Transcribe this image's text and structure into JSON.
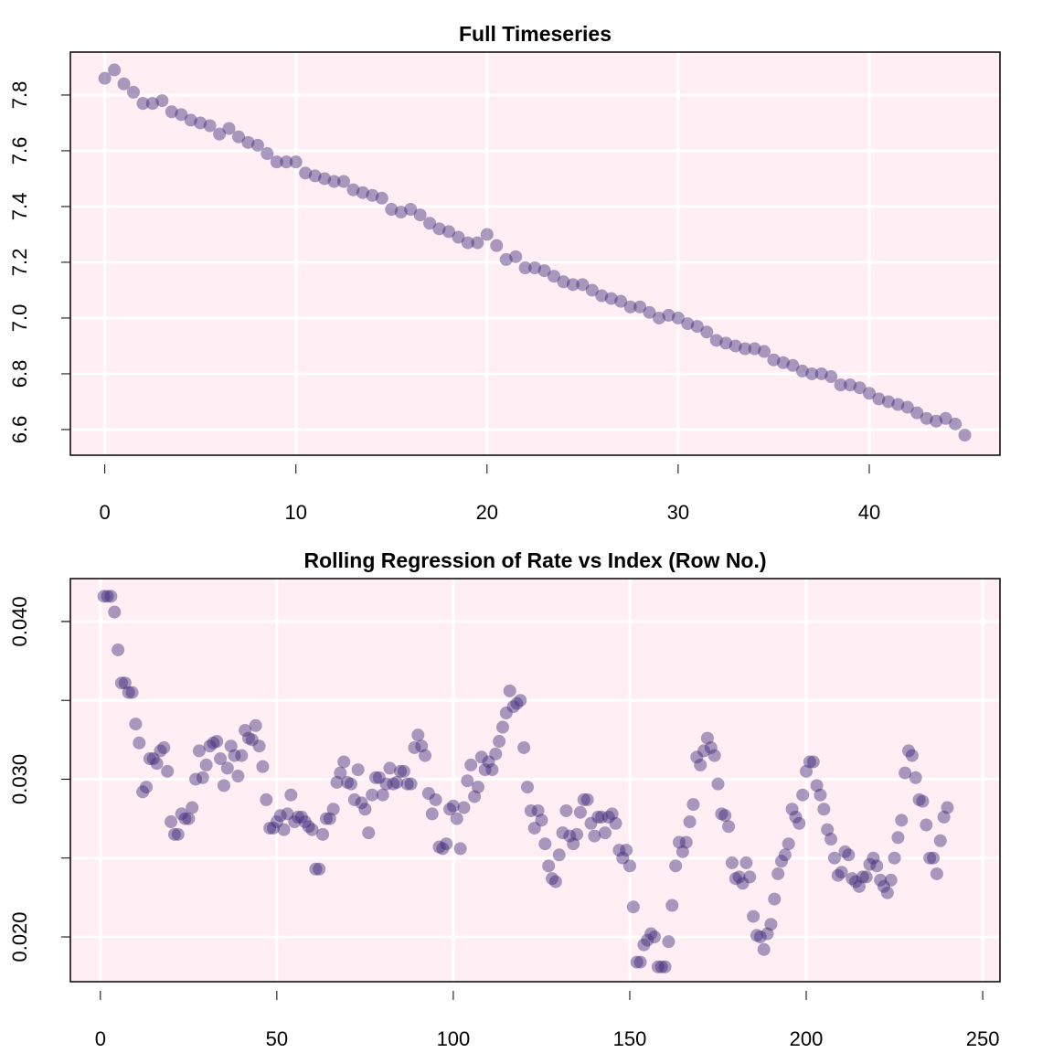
{
  "chart_data": [
    {
      "type": "scatter",
      "title": "Full Timeseries",
      "color": "#3f2a7a",
      "grid": true,
      "background": "#ffeef3",
      "xlim": [
        -1.8,
        46.84
      ],
      "ylim": [
        6.508,
        7.954
      ],
      "xticks": [
        0,
        10,
        20,
        30,
        40
      ],
      "yticks": [
        6.6,
        6.8,
        {
          "value": 7,
          "label": "7.0"
        },
        7.2,
        7.4,
        7.6,
        7.8
      ],
      "x": [
        0,
        0.5,
        1,
        1.5,
        2,
        2.5,
        3,
        3.5,
        4,
        4.5,
        5,
        5.5,
        6,
        6.5,
        7,
        7.5,
        8,
        8.5,
        9,
        9.5,
        10,
        10.5,
        11,
        11.5,
        12,
        12.5,
        13,
        13.5,
        14,
        14.5,
        15,
        15.5,
        16,
        16.5,
        17,
        17.5,
        18,
        18.5,
        19,
        19.5,
        20,
        20.5,
        21,
        21.5,
        22,
        22.5,
        23,
        23.5,
        24,
        24.5,
        25,
        25.5,
        26,
        26.5,
        27,
        27.5,
        28,
        28.5,
        29,
        29.5,
        30,
        30.5,
        31,
        31.5,
        32,
        32.5,
        33,
        33.5,
        34,
        34.5,
        35,
        35.5,
        36,
        36.5,
        37,
        37.5,
        38,
        38.5,
        39,
        39.5,
        40,
        40.5,
        41,
        41.5,
        42,
        42.5,
        43,
        43.5,
        44,
        44.5,
        45
      ],
      "values": [
        7.86,
        7.89,
        7.84,
        7.81,
        7.77,
        7.77,
        7.78,
        7.74,
        7.73,
        7.71,
        7.7,
        7.69,
        7.66,
        7.68,
        7.65,
        7.63,
        7.62,
        7.59,
        7.56,
        7.56,
        7.56,
        7.52,
        7.51,
        7.5,
        7.49,
        7.49,
        7.46,
        7.45,
        7.44,
        7.43,
        7.39,
        7.38,
        7.39,
        7.37,
        7.34,
        7.32,
        7.31,
        7.29,
        7.27,
        7.27,
        7.3,
        7.26,
        7.21,
        7.22,
        7.18,
        7.18,
        7.17,
        7.15,
        7.13,
        7.12,
        7.12,
        7.1,
        7.08,
        7.07,
        7.06,
        7.04,
        7.04,
        7.02,
        7.0,
        7.01,
        7.0,
        6.98,
        6.97,
        6.95,
        6.92,
        6.91,
        6.9,
        6.89,
        6.89,
        6.88,
        6.85,
        6.84,
        6.83,
        6.81,
        6.8,
        6.8,
        6.79,
        6.76,
        6.76,
        6.75,
        6.73,
        6.71,
        6.7,
        6.69,
        6.68,
        6.66,
        6.64,
        6.63,
        6.64,
        6.62,
        6.58
      ]
    },
    {
      "type": "scatter",
      "title": "Rolling Regression of Rate vs Index (Row No.)",
      "color": "#3f2a7a",
      "grid": true,
      "background": "#ffeef3",
      "xlim": [
        -8.5,
        254.9
      ],
      "ylim": [
        0.01716,
        0.04272
      ],
      "xticks": [
        0,
        50,
        100,
        150,
        200,
        250
      ],
      "yticks": [
        {
          "value": 0.02,
          "label": "0.020"
        },
        {
          "value": 0.03,
          "label": "0.030"
        },
        {
          "value": 0.04,
          "label": "0.040"
        }
      ],
      "ygrid": [
        0.02,
        0.025,
        0.03,
        0.035,
        0.04
      ],
      "x": [
        1,
        2,
        3,
        4,
        5,
        6,
        7,
        8,
        9,
        10,
        11,
        12,
        13,
        14,
        15,
        16,
        17,
        18,
        19,
        20,
        21,
        22,
        23,
        24,
        25,
        26,
        27,
        28,
        29,
        30,
        31,
        32,
        33,
        34,
        35,
        36,
        37,
        38,
        39,
        40,
        41,
        42,
        43,
        44,
        45,
        46,
        47,
        48,
        49,
        50,
        51,
        52,
        53,
        54,
        55,
        56,
        57,
        58,
        59,
        60,
        61,
        62,
        63,
        64,
        65,
        66,
        67,
        68,
        69,
        70,
        71,
        72,
        73,
        74,
        75,
        76,
        77,
        78,
        79,
        80,
        81,
        82,
        83,
        84,
        85,
        86,
        87,
        88,
        89,
        90,
        91,
        92,
        93,
        94,
        95,
        96,
        97,
        98,
        99,
        100,
        101,
        102,
        103,
        104,
        105,
        106,
        107,
        108,
        109,
        110,
        111,
        112,
        113,
        114,
        115,
        116,
        117,
        118,
        119,
        120,
        121,
        122,
        123,
        124,
        125,
        126,
        127,
        128,
        129,
        130,
        131,
        132,
        133,
        134,
        135,
        136,
        137,
        138,
        139,
        140,
        141,
        142,
        143,
        144,
        145,
        146,
        147,
        148,
        149,
        150,
        151,
        152,
        153,
        154,
        155,
        156,
        157,
        158,
        159,
        160,
        161,
        162,
        163,
        164,
        165,
        166,
        167,
        168,
        169,
        170,
        171,
        172,
        173,
        174,
        175,
        176,
        177,
        178,
        179,
        180,
        181,
        182,
        183,
        184,
        185,
        186,
        187,
        188,
        189,
        190,
        191,
        192,
        193,
        194,
        195,
        196,
        197,
        198,
        199,
        200,
        201,
        202,
        203,
        204,
        205,
        206,
        207,
        208,
        209,
        210,
        211,
        212,
        213,
        214,
        215,
        216,
        217,
        218,
        219,
        220,
        221,
        222,
        223,
        224,
        225,
        226,
        227,
        228,
        229,
        230,
        231,
        232,
        233,
        234,
        235,
        236,
        237,
        238,
        239,
        240
      ],
      "values": [
        0.0416,
        0.0416,
        0.0416,
        0.0406,
        0.0382,
        0.0361,
        0.0361,
        0.0355,
        0.0355,
        0.0335,
        0.0323,
        0.0292,
        0.0295,
        0.0313,
        0.0313,
        0.031,
        0.0318,
        0.032,
        0.0305,
        0.0273,
        0.0265,
        0.0265,
        0.0278,
        0.0275,
        0.0275,
        0.0282,
        0.03,
        0.0318,
        0.0301,
        0.0309,
        0.0321,
        0.0323,
        0.0324,
        0.0313,
        0.0296,
        0.0307,
        0.0321,
        0.0315,
        0.0302,
        0.0315,
        0.0331,
        0.0326,
        0.0325,
        0.0334,
        0.0321,
        0.0308,
        0.0287,
        0.0269,
        0.0269,
        0.0273,
        0.0277,
        0.0268,
        0.0278,
        0.029,
        0.0273,
        0.0276,
        0.0276,
        0.0273,
        0.027,
        0.0268,
        0.0243,
        0.0243,
        0.0265,
        0.0275,
        0.0275,
        0.0281,
        0.0298,
        0.0304,
        0.0311,
        0.0298,
        0.0297,
        0.0287,
        0.0306,
        0.0285,
        0.0281,
        0.0266,
        0.029,
        0.0301,
        0.0301,
        0.029,
        0.0297,
        0.0307,
        0.0297,
        0.0298,
        0.0305,
        0.0305,
        0.0297,
        0.0297,
        0.032,
        0.0328,
        0.0321,
        0.0315,
        0.0291,
        0.0278,
        0.0287,
        0.0257,
        0.0256,
        0.0259,
        0.0281,
        0.0283,
        0.0275,
        0.0256,
        0.0282,
        0.0299,
        0.0309,
        0.0289,
        0.0295,
        0.0314,
        0.0306,
        0.0311,
        0.0306,
        0.0316,
        0.0324,
        0.0333,
        0.0342,
        0.0356,
        0.0346,
        0.0348,
        0.035,
        0.032,
        0.0295,
        0.028,
        0.0269,
        0.028,
        0.0274,
        0.0259,
        0.0245,
        0.0237,
        0.0235,
        0.0252,
        0.0266,
        0.028,
        0.0264,
        0.0259,
        0.0265,
        0.0279,
        0.0287,
        0.0287,
        0.0272,
        0.0264,
        0.0276,
        0.0276,
        0.0266,
        0.0276,
        0.0278,
        0.0272,
        0.0255,
        0.025,
        0.0255,
        0.0245,
        0.0219,
        0.0184,
        0.0184,
        0.0195,
        0.0198,
        0.0202,
        0.02,
        0.0181,
        0.0181,
        0.0181,
        0.0197,
        0.022,
        0.0245,
        0.026,
        0.0254,
        0.026,
        0.0273,
        0.0284,
        0.0314,
        0.0309,
        0.0318,
        0.0326,
        0.032,
        0.0315,
        0.0297,
        0.0278,
        0.0277,
        0.027,
        0.0247,
        0.0237,
        0.0238,
        0.0234,
        0.0247,
        0.0238,
        0.0213,
        0.0201,
        0.02,
        0.0192,
        0.0202,
        0.0208,
        0.0224,
        0.024,
        0.0248,
        0.0252,
        0.0259,
        0.0281,
        0.0276,
        0.0272,
        0.029,
        0.0305,
        0.0311,
        0.0311,
        0.0296,
        0.029,
        0.0281,
        0.0268,
        0.0262,
        0.025,
        0.0239,
        0.0241,
        0.0254,
        0.0252,
        0.0237,
        0.0235,
        0.0232,
        0.0238,
        0.0238,
        0.0246,
        0.025,
        0.0245,
        0.0236,
        0.0232,
        0.0228,
        0.0236,
        0.025,
        0.0263,
        0.0274,
        0.0304,
        0.0318,
        0.0315,
        0.0301,
        0.0287,
        0.0286,
        0.0271,
        0.025,
        0.025,
        0.024,
        0.0261,
        0.0276,
        0.0282
      ]
    }
  ]
}
